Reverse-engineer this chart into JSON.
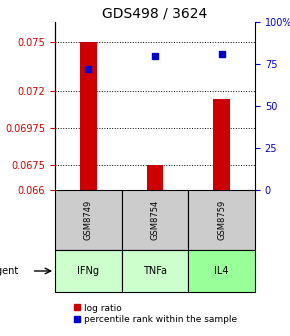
{
  "title": "GDS498 / 3624",
  "samples": [
    "GSM8749",
    "GSM8754",
    "GSM8759"
  ],
  "agents": [
    "IFNg",
    "TNFa",
    "IL4"
  ],
  "bar_values": [
    0.075,
    0.0675,
    0.0715
  ],
  "bar_base": 0.066,
  "percentile_values": [
    72,
    80,
    81
  ],
  "ylim": [
    0.066,
    0.0762
  ],
  "yticks": [
    0.066,
    0.0675,
    0.06975,
    0.072,
    0.075
  ],
  "ytick_labels": [
    "0.066",
    "0.0675",
    "0.06975",
    "0.072",
    "0.075"
  ],
  "y2ticks": [
    0,
    25,
    50,
    75,
    100
  ],
  "y2tick_labels": [
    "0",
    "25",
    "50",
    "75",
    "100%"
  ],
  "y2lim": [
    0,
    100
  ],
  "bar_color": "#cc0000",
  "percentile_color": "#0000cc",
  "agent_colors": [
    "#ccffcc",
    "#ccffcc",
    "#99ff99"
  ],
  "sample_bg_color": "#cccccc",
  "title_fontsize": 10,
  "axis_fontsize": 7,
  "legend_fontsize": 6.5,
  "bar_width": 0.25
}
